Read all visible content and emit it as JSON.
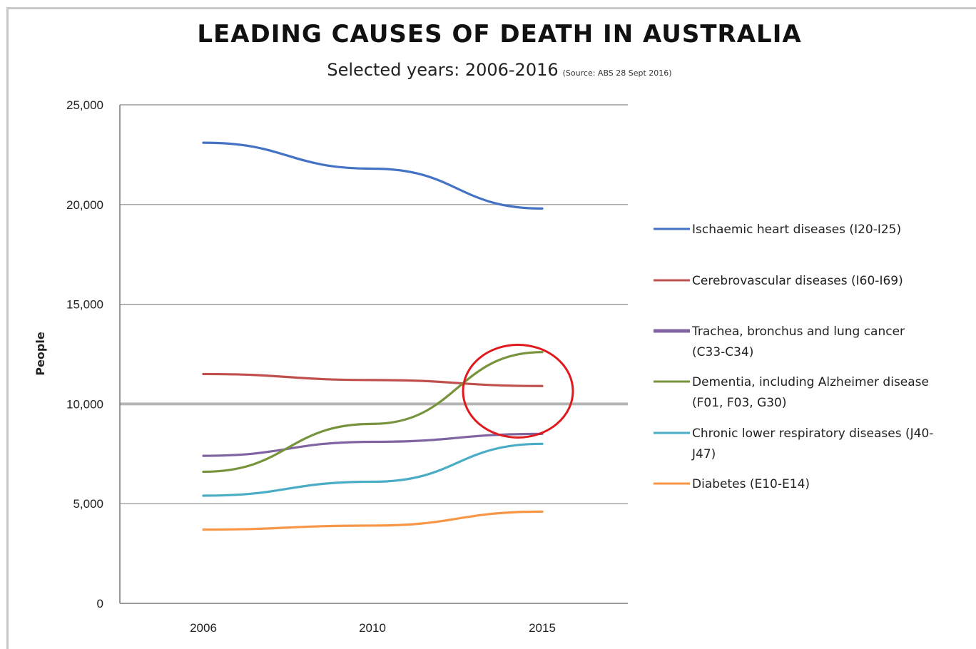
{
  "chart_data": {
    "type": "line",
    "title": "LEADING CAUSES OF DEATH IN AUSTRALIA",
    "subtitle": "Selected years: 2006-2016",
    "source_note": "(Source: ABS 28 Sept 2016)",
    "xlabel": "",
    "ylabel": "People",
    "categories": [
      "2006",
      "2010",
      "2015"
    ],
    "ylim": [
      0,
      25000
    ],
    "yticks": [
      0,
      5000,
      10000,
      15000,
      20000,
      25000
    ],
    "ytick_labels": [
      "0",
      "5,000",
      "10,000",
      "15,000",
      "20,000",
      "25,000"
    ],
    "grid": true,
    "legend_position": "right",
    "series": [
      {
        "name": "Ischaemic heart diseases (I20-I25)",
        "legend_lines": [
          "Ischaemic heart diseases (I20-I25)"
        ],
        "color": "#4472c4",
        "values": [
          23100,
          21800,
          19800
        ]
      },
      {
        "name": "Cerebrovascular diseases (I60-I69)",
        "legend_lines": [
          "Cerebrovascular diseases (I60-I69)"
        ],
        "color": "#c0504d",
        "values": [
          11500,
          11200,
          10900
        ]
      },
      {
        "name": "Trachea, bronchus and lung cancer (C33-C34)",
        "legend_lines": [
          "Trachea, bronchus and lung cancer",
          "(C33-C34)"
        ],
        "color": "#8064a2",
        "values": [
          7400,
          8100,
          8500
        ]
      },
      {
        "name": "Dementia, including Alzheimer disease (F01, F03, G30)",
        "legend_lines": [
          "Dementia, including Alzheimer disease",
          "(F01, F03, G30)"
        ],
        "color": "#77933c",
        "values": [
          6600,
          9000,
          12600
        ]
      },
      {
        "name": "Chronic lower respiratory diseases (J40-J47)",
        "legend_lines": [
          "Chronic lower respiratory diseases (J40-",
          "J47)"
        ],
        "color": "#4bacc6",
        "values": [
          5400,
          6100,
          8000
        ]
      },
      {
        "name": "Diabetes (E10-E14)",
        "legend_lines": [
          "Diabetes (E10-E14)"
        ],
        "color": "#f79646",
        "values": [
          3700,
          3900,
          4600
        ]
      }
    ],
    "annotations": [
      {
        "type": "circle",
        "color": "#e0191e",
        "around": {
          "x": "2015",
          "y": 11000
        }
      }
    ]
  }
}
